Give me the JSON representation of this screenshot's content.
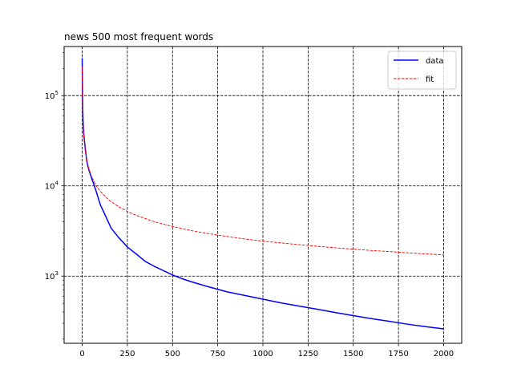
{
  "chart_data": {
    "type": "line",
    "title": "news 500 most frequent words",
    "xlabel": "",
    "ylabel": "",
    "xlim": [
      -100,
      2100
    ],
    "ylim": [
      180,
      350000
    ],
    "yscale": "log",
    "grid": true,
    "legend_position": "top-right",
    "x_ticks": [
      0,
      250,
      500,
      750,
      1000,
      1250,
      1500,
      1750,
      2000
    ],
    "x_tick_labels": [
      "0",
      "250",
      "500",
      "750",
      "1000",
      "1250",
      "1500",
      "1750",
      "2000"
    ],
    "y_ticks": [
      1000,
      10000,
      100000
    ],
    "y_tick_labels": [
      {
        "base": "10",
        "exp": "3"
      },
      {
        "base": "10",
        "exp": "4"
      },
      {
        "base": "10",
        "exp": "5"
      }
    ],
    "series": [
      {
        "name": "data",
        "color": "#0000ff",
        "style": "solid",
        "x": [
          0,
          1,
          2,
          3,
          5,
          8,
          12,
          18,
          25,
          35,
          50,
          75,
          100,
          130,
          160,
          200,
          250,
          300,
          350,
          400,
          450,
          500,
          550,
          600,
          700,
          800,
          900,
          1000,
          1100,
          1200,
          1300,
          1400,
          1500,
          1600,
          1700,
          1800,
          1900,
          2000
        ],
        "y": [
          260000,
          150000,
          100000,
          72000,
          52000,
          40000,
          32000,
          25000,
          19000,
          15500,
          12500,
          9000,
          6200,
          4600,
          3400,
          2700,
          2100,
          1750,
          1450,
          1280,
          1150,
          1030,
          940,
          870,
          760,
          670,
          610,
          555,
          505,
          465,
          430,
          395,
          365,
          338,
          315,
          293,
          275,
          260
        ]
      },
      {
        "name": "fit",
        "color": "#ff0000",
        "style": "dashed",
        "x": [
          0,
          1,
          2,
          3,
          5,
          8,
          12,
          18,
          25,
          35,
          50,
          75,
          100,
          150,
          200,
          250,
          300,
          400,
          500,
          600,
          700,
          800,
          900,
          1000,
          1100,
          1200,
          1300,
          1400,
          1500,
          1600,
          1700,
          1800,
          1900,
          2000
        ],
        "y": [
          210000,
          120000,
          85000,
          67000,
          48000,
          37000,
          30000,
          24000,
          19500,
          16000,
          13000,
          10200,
          8700,
          6900,
          5900,
          5200,
          4700,
          4000,
          3550,
          3200,
          2950,
          2750,
          2580,
          2440,
          2330,
          2230,
          2140,
          2060,
          1990,
          1920,
          1870,
          1810,
          1760,
          1720
        ]
      }
    ]
  }
}
